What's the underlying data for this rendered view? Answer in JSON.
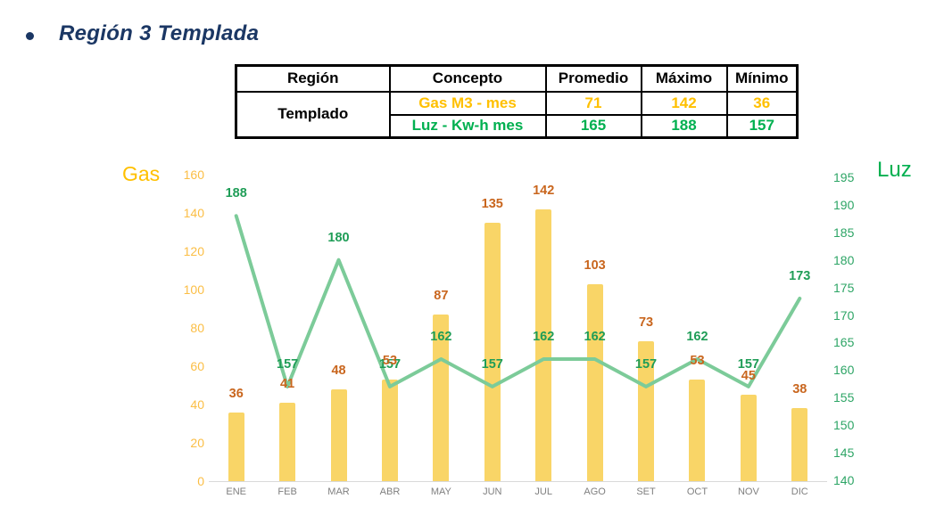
{
  "title": {
    "text": "Región 3 Templada",
    "color": "#1B3764"
  },
  "table": {
    "headers": [
      "Región",
      "Concepto",
      "Promedio",
      "Máximo",
      "Mínimo"
    ],
    "region_label": "Templado",
    "rows": [
      {
        "concept": "Gas M3 - mes",
        "promedio": "71",
        "maximo": "142",
        "minimo": "36",
        "color": "#FFC000"
      },
      {
        "concept": "Luz - Kw-h mes",
        "promedio": "165",
        "maximo": "188",
        "minimo": "157",
        "color": "#00B050"
      }
    ]
  },
  "chart_data": {
    "type": "bar+line",
    "categories": [
      "ENE",
      "FEB",
      "MAR",
      "ABR",
      "MAY",
      "JUN",
      "JUL",
      "AGO",
      "SET",
      "OCT",
      "NOV",
      "DIC"
    ],
    "series": [
      {
        "name": "Gas",
        "type": "bar",
        "axis": "left",
        "values": [
          36,
          41,
          48,
          53,
          87,
          135,
          142,
          103,
          73,
          53,
          45,
          38
        ],
        "bar_color": "#F9D567",
        "label_color": "#C9661E"
      },
      {
        "name": "Luz",
        "type": "line",
        "axis": "right",
        "values": [
          188,
          157,
          180,
          157,
          162,
          157,
          162,
          162,
          157,
          162,
          157,
          173
        ],
        "line_color": "#7CCB99",
        "label_color": "#1F9D57"
      }
    ],
    "left_axis": {
      "title": "Gas",
      "min": 0,
      "max": 160,
      "step": 20,
      "title_color": "#FFC000",
      "tick_color": "#FBBE45"
    },
    "right_axis": {
      "title": "Luz",
      "min": 140,
      "max": 195,
      "step": 5,
      "title_color": "#00B050",
      "tick_color": "#2EA566"
    },
    "x_axis": {
      "label_color": "#7F7F7F",
      "line_color": "#D9D9D9"
    },
    "grid": false,
    "legend": false
  }
}
